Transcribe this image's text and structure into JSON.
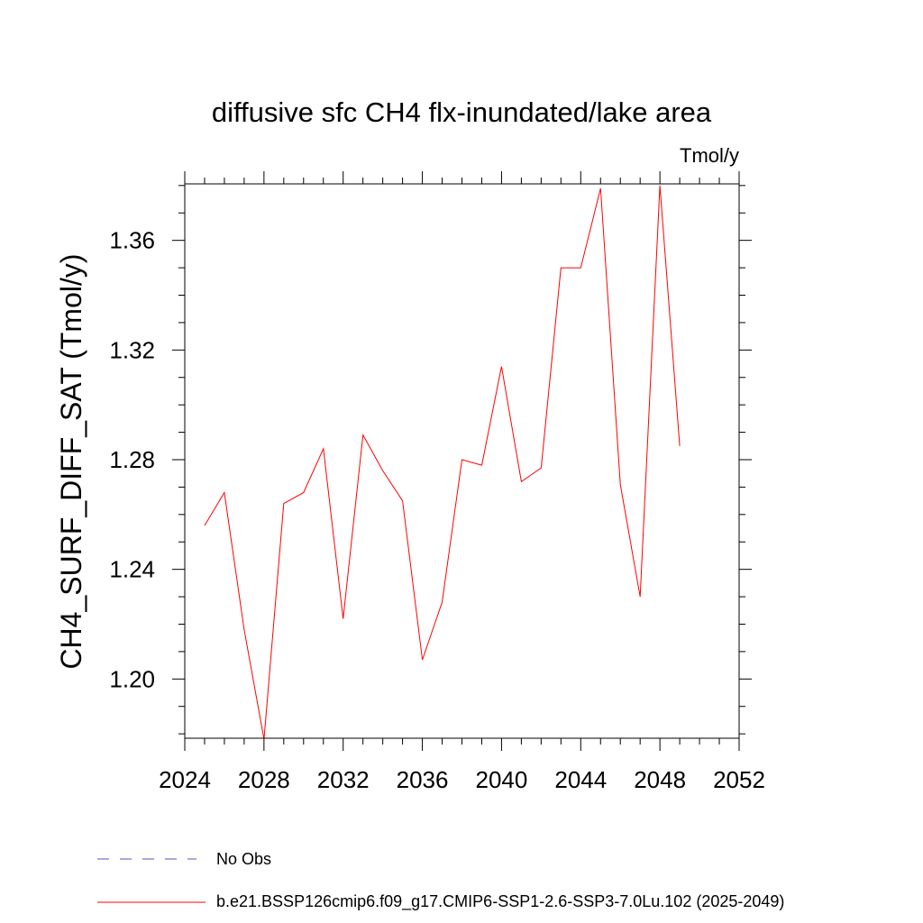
{
  "chart_data": {
    "type": "line",
    "title": "diffusive sfc CH4 flx-inundated/lake area",
    "units_label": "Tmol/y",
    "ylabel": "CH4_SURF_DIFF_SAT  (Tmol/y)",
    "xlabel": "",
    "xlim": [
      2024,
      2052
    ],
    "ylim": [
      1.1784,
      1.3806
    ],
    "x_major_ticks": [
      2024,
      2028,
      2032,
      2036,
      2040,
      2044,
      2048,
      2052
    ],
    "x_tick_labels": [
      "2024",
      "2028",
      "2032",
      "2036",
      "2040",
      "2044",
      "2048",
      "2052"
    ],
    "y_major_ticks": [
      1.2,
      1.24,
      1.28,
      1.32,
      1.36
    ],
    "y_tick_labels": [
      "1.20",
      "1.24",
      "1.28",
      "1.32",
      "1.36"
    ],
    "grid": false,
    "legend_position": "bottom",
    "series": [
      {
        "name": "b.e21.BSSP126cmip6.f09_g17.CMIP6-SSP1-2.6-SSP3-7.0Lu.102 (2025-2049)",
        "color": "#ff0000",
        "style": "solid",
        "x": [
          2025,
          2026,
          2027,
          2028,
          2029,
          2030,
          2031,
          2032,
          2033,
          2034,
          2035,
          2036,
          2037,
          2038,
          2039,
          2040,
          2041,
          2042,
          2043,
          2044,
          2045,
          2046,
          2047,
          2048,
          2049
        ],
        "values": [
          1.256,
          1.268,
          1.218,
          1.178,
          1.264,
          1.268,
          1.284,
          1.222,
          1.289,
          1.276,
          1.265,
          1.207,
          1.228,
          1.28,
          1.278,
          1.314,
          1.272,
          1.277,
          1.35,
          1.35,
          1.379,
          1.271,
          1.23,
          1.38,
          1.285
        ]
      }
    ],
    "legend": [
      {
        "label": "No Obs",
        "color": "#5a4fb8",
        "style": "dashed"
      },
      {
        "label": "b.e21.BSSP126cmip6.f09_g17.CMIP6-SSP1-2.6-SSP3-7.0Lu.102 (2025-2049)",
        "color": "#ff0000",
        "style": "solid"
      }
    ]
  }
}
